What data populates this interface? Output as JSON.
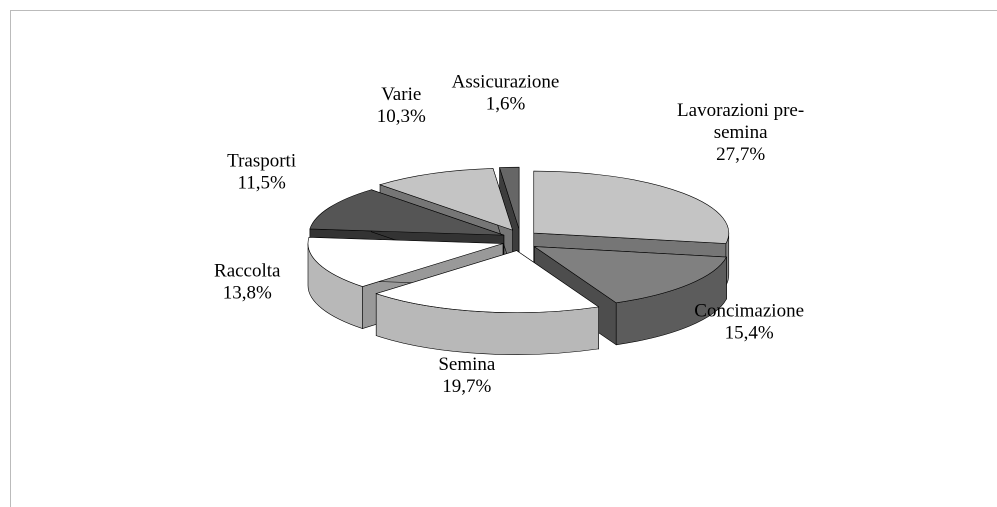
{
  "chart_data": {
    "type": "pie",
    "categories": [
      "Lavorazioni pre-semina",
      "Concimazione",
      "Semina",
      "Raccolta",
      "Trasporti",
      "Varie",
      "Assicurazione"
    ],
    "values": [
      27.7,
      15.4,
      19.7,
      13.8,
      11.5,
      10.3,
      1.6
    ],
    "value_labels": [
      "27,7%",
      "15,4%",
      "19,7%",
      "13,8%",
      "11,5%",
      "10,3%",
      "1,6%"
    ],
    "colors": [
      "#c4c4c4",
      "#808080",
      "#ffffff",
      "#ffffff",
      "#555555",
      "#c4c4c4",
      "#666666"
    ],
    "legend": false,
    "three_d": true,
    "exploded": true
  }
}
